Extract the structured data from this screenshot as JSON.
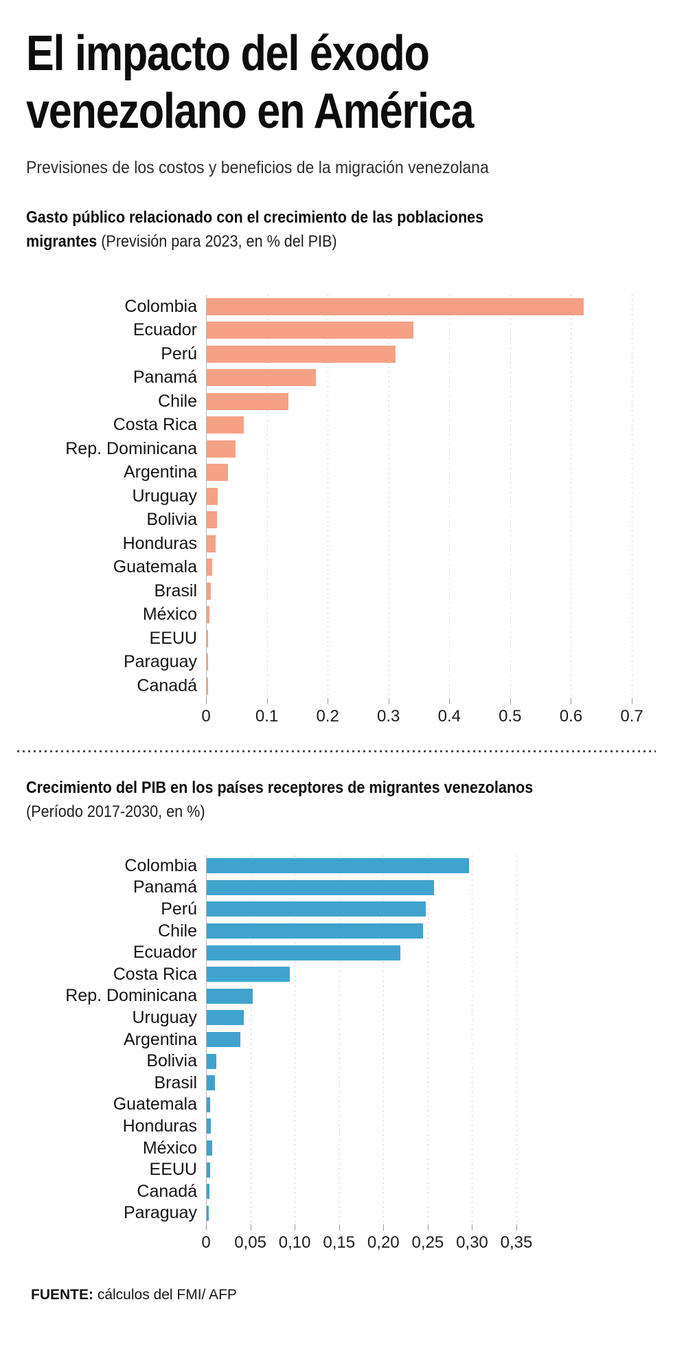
{
  "page": {
    "title_line1": "El impacto del éxodo",
    "title_line2": "venezolano en América",
    "subtitle": "Previsiones de los costos y beneficios de la migración venezolana",
    "source_label": "FUENTE:",
    "source_text": " cálculos del FMI/ AFP"
  },
  "colors": {
    "chart1_bar": "#f6a185",
    "chart2_bar": "#3fa3cd",
    "axis_line": "#b5b5b5",
    "gridline": "#cfcfcf",
    "text": "#0d0d0d"
  },
  "chart_data": [
    {
      "type": "bar",
      "orientation": "horizontal",
      "title_bold": "Gasto público relacionado con el crecimiento de las poblaciones migrantes",
      "title_regular": "(Previsión para 2023, en % del PIB)",
      "categories": [
        "Colombia",
        "Ecuador",
        "Perú",
        "Panamá",
        "Chile",
        "Costa Rica",
        "Rep. Dominicana",
        "Argentina",
        "Uruguay",
        "Bolivia",
        "Honduras",
        "Guatemala",
        "Brasil",
        "México",
        "EEUU",
        "Paraguay",
        "Canadá"
      ],
      "values": [
        0.62,
        0.34,
        0.31,
        0.18,
        0.134,
        0.061,
        0.047,
        0.035,
        0.018,
        0.017,
        0.015,
        0.009,
        0.007,
        0.005,
        0.002,
        0.002,
        0.002
      ],
      "xlim": [
        0,
        0.7
      ],
      "ticks": [
        0,
        0.1,
        0.2,
        0.3,
        0.4,
        0.5,
        0.6,
        0.7
      ],
      "tick_labels": [
        "0",
        "0.1",
        "0.2",
        "0.3",
        "0.4",
        "0.5",
        "0.6",
        "0.7"
      ],
      "decimal_separator": ".",
      "grid": "dotted-vertical",
      "bar_color": "#f6a185",
      "legend": "none"
    },
    {
      "type": "bar",
      "orientation": "horizontal",
      "title_bold": "Crecimiento del PIB en los países receptores de migrantes venezolanos",
      "title_regular": "(Período 2017-2030, en %)",
      "categories": [
        "Colombia",
        "Panamá",
        "Perú",
        "Chile",
        "Ecuador",
        "Costa Rica",
        "Rep. Dominicana",
        "Uruguay",
        "Argentina",
        "Bolivia",
        "Brasil",
        "Guatemala",
        "Honduras",
        "México",
        "EEUU",
        "Canadá",
        "Paraguay"
      ],
      "values": [
        0.296,
        0.256,
        0.247,
        0.244,
        0.218,
        0.094,
        0.052,
        0.042,
        0.038,
        0.011,
        0.009,
        0.004,
        0.005,
        0.006,
        0.004,
        0.003,
        0.002
      ],
      "xlim": [
        0,
        0.35
      ],
      "ticks": [
        0,
        0.05,
        0.1,
        0.15,
        0.2,
        0.25,
        0.3,
        0.35
      ],
      "tick_labels": [
        "0",
        "0,05",
        "0,10",
        "0,15",
        "0,20",
        "0,25",
        "0,30",
        "0,35"
      ],
      "decimal_separator": ",",
      "grid": "dotted-vertical",
      "bar_color": "#3fa3cd",
      "legend": "none"
    }
  ]
}
